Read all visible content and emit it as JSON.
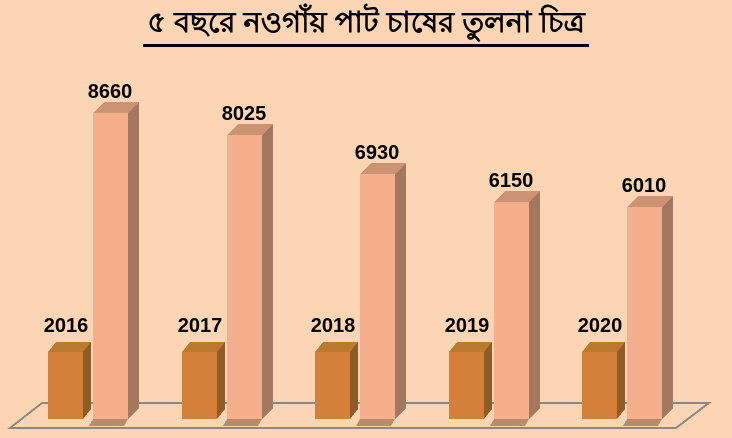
{
  "title": "৫ বছরে নওগাঁয় পাট চাষের তুলনা চিত্র",
  "chart_data": {
    "type": "bar",
    "style": "3d-column",
    "title": "৫ বছরে নওগাঁয় পাট চাষের তুলনা চিত্র",
    "categories": [
      "2016",
      "2017",
      "2018",
      "2019",
      "2020"
    ],
    "series": [
      {
        "name": "jute-cultivation-amount",
        "values": [
          8660,
          8025,
          6930,
          6150,
          6010
        ]
      }
    ],
    "value_labels": [
      "8660",
      "8025",
      "6930",
      "6150",
      "6010"
    ],
    "xlabel": "",
    "ylabel": "",
    "ylim": [
      0,
      8660
    ],
    "legend": "none",
    "gridlines": false,
    "marker_bars": {
      "description": "short uniform orange 3d column beside each tall bar, year label above it",
      "uniform": true
    }
  },
  "colors": {
    "background": "#FCD6B4",
    "title_text": "#000000",
    "label_text": "#000000",
    "tall_bar_front": "#F5AF8C",
    "tall_bar_top": "#CB9373",
    "tall_bar_side": "#A3785E",
    "tall_bar_bottom": "#BA8A69",
    "small_bar_front": "#D4803B",
    "small_bar_top": "#BC7A2E",
    "small_bar_side": "#8F5B26",
    "floor_line": "#8C8880"
  }
}
